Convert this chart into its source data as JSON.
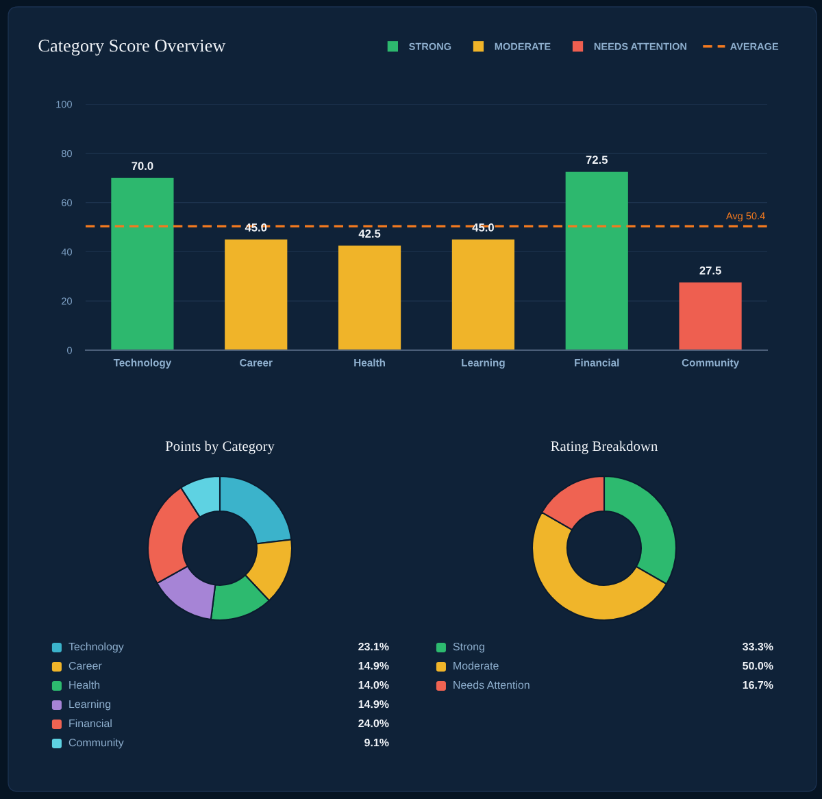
{
  "chart_data": [
    {
      "type": "bar",
      "title": "Category Score Overview",
      "categories": [
        "Technology",
        "Career",
        "Health",
        "Learning",
        "Financial",
        "Community"
      ],
      "series": [
        {
          "name": "STRONG",
          "color": "#2db86e",
          "values": [
            70.0,
            null,
            null,
            null,
            72.5,
            null
          ],
          "value_labels": [
            "70.0",
            null,
            null,
            null,
            "72.5",
            null
          ]
        },
        {
          "name": "MODERATE",
          "color": "#f0b429",
          "values": [
            null,
            45.0,
            42.5,
            45.0,
            null,
            null
          ],
          "value_labels": [
            null,
            "45.0",
            "42.5",
            "45.0",
            null,
            null
          ]
        },
        {
          "name": "NEEDS ATTENTION",
          "color": "#ee5f50",
          "values": [
            null,
            null,
            null,
            null,
            null,
            27.5
          ],
          "value_labels": [
            null,
            null,
            null,
            null,
            null,
            "27.5"
          ]
        }
      ],
      "ylim": [
        0,
        100
      ],
      "yticks": [
        0,
        20,
        40,
        60,
        80,
        100
      ],
      "grid": "y",
      "legend": "top right",
      "ref_lines": [
        {
          "axis": "y",
          "value": 50.4,
          "label": "AVERAGE",
          "color": "#f47a1f",
          "line_style": "dashed"
        }
      ],
      "annotations": [
        {
          "text": "Avg 50.4",
          "y": 50.4
        }
      ]
    },
    {
      "type": "donut",
      "title": "Points by Category",
      "categories": [
        "Technology",
        "Career",
        "Health",
        "Learning",
        "Financial",
        "Community"
      ],
      "values": [
        23.1,
        14.9,
        14.0,
        14.9,
        24.0,
        9.1
      ],
      "colors": [
        "#3bb3cb",
        "#f0b52a",
        "#2dba6f",
        "#a684d6",
        "#ef6352",
        "#5ed2e2"
      ],
      "value_labels": [
        "23.1%",
        "14.9%",
        "14.0%",
        "14.9%",
        "24.0%",
        "9.1%"
      ],
      "legend": "bottom"
    },
    {
      "type": "donut",
      "title": "Rating Breakdown",
      "categories": [
        "Strong",
        "Moderate",
        "Needs Attention"
      ],
      "values": [
        33.3,
        50.0,
        16.7
      ],
      "colors": [
        "#2dba6f",
        "#f0b52a",
        "#ef6352"
      ],
      "value_labels": [
        "33.3%",
        "50.0%",
        "16.7%"
      ],
      "legend": "bottom"
    }
  ]
}
